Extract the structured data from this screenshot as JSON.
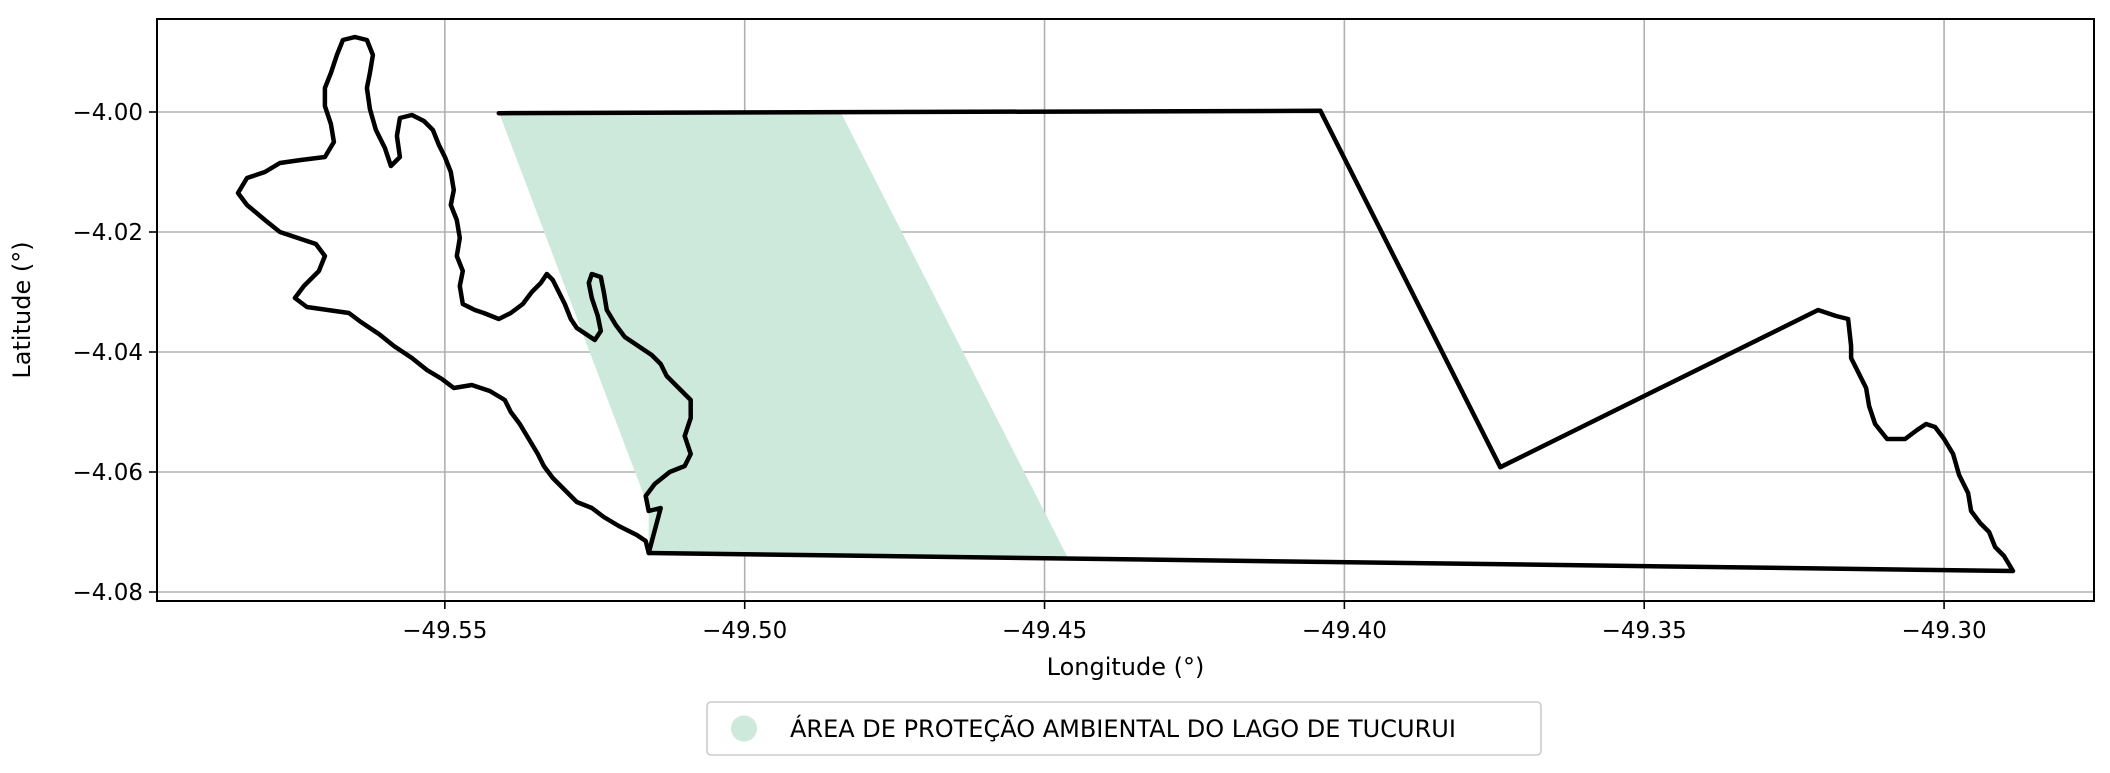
{
  "chart_data": {
    "type": "map",
    "xlabel": "Longitude (°)",
    "ylabel": "Latitude (°)",
    "xlim": [
      -49.598,
      -49.275
    ],
    "ylim": [
      -4.0815,
      -3.9845
    ],
    "xticks": [
      -49.55,
      -49.5,
      -49.45,
      -49.4,
      -49.35,
      -49.3
    ],
    "xtick_labels": [
      "−49.55",
      "−49.50",
      "−49.45",
      "−49.40",
      "−49.35",
      "−49.30"
    ],
    "yticks": [
      -4.0,
      -4.02,
      -4.04,
      -4.06,
      -4.08
    ],
    "ytick_labels": [
      "−4.00",
      "−4.02",
      "−4.04",
      "−4.06",
      "−4.08"
    ],
    "grid": true,
    "legend_placement": "bottom-center",
    "legend": [
      {
        "label": "ÁREA DE PROTEÇÃO AMBIENTAL DO LAGO DE TUCURUI",
        "color": "#cce9dc"
      }
    ],
    "filled_area": {
      "color": "#cce9dc",
      "polygon": [
        [
          -49.541,
          -4.0
        ],
        [
          -49.484,
          -4.0
        ],
        [
          -49.446,
          -4.0745
        ],
        [
          -49.516,
          -4.0735
        ],
        [
          -49.516,
          -4.066
        ],
        [
          -49.541,
          -4.0
        ]
      ]
    },
    "outline_color": "#000000",
    "boundary": [
      [
        -49.541,
        -4.0002
      ],
      [
        -49.404,
        -3.9998
      ],
      [
        -49.374,
        -4.0592
      ],
      [
        -49.321,
        -4.033
      ],
      [
        -49.318,
        -4.034
      ],
      [
        -49.316,
        -4.0345
      ],
      [
        -49.3155,
        -4.039
      ],
      [
        -49.3155,
        -4.041
      ],
      [
        -49.3145,
        -4.043
      ],
      [
        -49.313,
        -4.046
      ],
      [
        -49.3125,
        -4.049
      ],
      [
        -49.3115,
        -4.052
      ],
      [
        -49.3095,
        -4.0545
      ],
      [
        -49.3065,
        -4.0545
      ],
      [
        -49.3045,
        -4.053
      ],
      [
        -49.303,
        -4.052
      ],
      [
        -49.3015,
        -4.0525
      ],
      [
        -49.3,
        -4.0545
      ],
      [
        -49.2985,
        -4.057
      ],
      [
        -49.2975,
        -4.0605
      ],
      [
        -49.296,
        -4.0635
      ],
      [
        -49.2955,
        -4.0665
      ],
      [
        -49.294,
        -4.0685
      ],
      [
        -49.2925,
        -4.07
      ],
      [
        -49.2915,
        -4.0725
      ],
      [
        -49.29,
        -4.074
      ],
      [
        -49.2885,
        -4.0765
      ],
      [
        -49.516,
        -4.0735
      ]
    ],
    "coastline": [
      [
        -49.516,
        -4.0735
      ],
      [
        -49.5165,
        -4.0715
      ],
      [
        -49.518,
        -4.0705
      ],
      [
        -49.521,
        -4.069
      ],
      [
        -49.5235,
        -4.0675
      ],
      [
        -49.5255,
        -4.066
      ],
      [
        -49.528,
        -4.065
      ],
      [
        -49.53,
        -4.063
      ],
      [
        -49.532,
        -4.061
      ],
      [
        -49.5335,
        -4.059
      ],
      [
        -49.5345,
        -4.057
      ],
      [
        -49.536,
        -4.0545
      ],
      [
        -49.5375,
        -4.052
      ],
      [
        -49.539,
        -4.05
      ],
      [
        -49.54,
        -4.048
      ],
      [
        -49.5425,
        -4.0465
      ],
      [
        -49.5455,
        -4.0455
      ],
      [
        -49.5485,
        -4.046
      ],
      [
        -49.5505,
        -4.0445
      ],
      [
        -49.553,
        -4.043
      ],
      [
        -49.5555,
        -4.041
      ],
      [
        -49.5585,
        -4.039
      ],
      [
        -49.561,
        -4.037
      ],
      [
        -49.564,
        -4.035
      ],
      [
        -49.566,
        -4.0335
      ],
      [
        -49.5695,
        -4.033
      ],
      [
        -49.573,
        -4.0325
      ],
      [
        -49.575,
        -4.031
      ],
      [
        -49.5735,
        -4.029
      ],
      [
        -49.571,
        -4.0265
      ],
      [
        -49.57,
        -4.024
      ],
      [
        -49.5715,
        -4.022
      ],
      [
        -49.5745,
        -4.021
      ],
      [
        -49.5775,
        -4.02
      ],
      [
        -49.58,
        -4.018
      ],
      [
        -49.583,
        -4.0155
      ],
      [
        -49.5845,
        -4.0135
      ],
      [
        -49.583,
        -4.011
      ],
      [
        -49.58,
        -4.01
      ],
      [
        -49.5775,
        -4.0085
      ],
      [
        -49.574,
        -4.008
      ],
      [
        -49.57,
        -4.0075
      ],
      [
        -49.5685,
        -4.005
      ],
      [
        -49.569,
        -4.002
      ],
      [
        -49.57,
        -3.999
      ],
      [
        -49.57,
        -3.996
      ],
      [
        -49.569,
        -3.9935
      ],
      [
        -49.568,
        -3.9905
      ],
      [
        -49.567,
        -3.988
      ],
      [
        -49.565,
        -3.9875
      ],
      [
        -49.563,
        -3.988
      ],
      [
        -49.562,
        -3.9905
      ],
      [
        -49.5625,
        -3.9935
      ],
      [
        -49.563,
        -3.996
      ],
      [
        -49.5625,
        -3.9995
      ],
      [
        -49.5615,
        -4.003
      ],
      [
        -49.56,
        -4.006
      ],
      [
        -49.559,
        -4.009
      ],
      [
        -49.5575,
        -4.0075
      ],
      [
        -49.558,
        -4.004
      ],
      [
        -49.5575,
        -4.001
      ],
      [
        -49.5555,
        -4.0005
      ],
      [
        -49.5535,
        -4.0015
      ],
      [
        -49.552,
        -4.003
      ],
      [
        -49.551,
        -4.0055
      ],
      [
        -49.55,
        -4.0075
      ],
      [
        -49.549,
        -4.01
      ],
      [
        -49.5485,
        -4.013
      ],
      [
        -49.549,
        -4.0155
      ],
      [
        -49.548,
        -4.018
      ],
      [
        -49.5475,
        -4.021
      ],
      [
        -49.548,
        -4.024
      ],
      [
        -49.547,
        -4.0265
      ],
      [
        -49.5475,
        -4.029
      ],
      [
        -49.547,
        -4.032
      ],
      [
        -49.545,
        -4.033
      ],
      [
        -49.5435,
        -4.0335
      ],
      [
        -49.541,
        -4.0345
      ],
      [
        -49.539,
        -4.0335
      ],
      [
        -49.537,
        -4.032
      ],
      [
        -49.5355,
        -4.03
      ],
      [
        -49.534,
        -4.0285
      ],
      [
        -49.533,
        -4.027
      ],
      [
        -49.532,
        -4.028
      ],
      [
        -49.531,
        -4.03
      ],
      [
        -49.53,
        -4.032
      ],
      [
        -49.529,
        -4.0345
      ],
      [
        -49.528,
        -4.036
      ],
      [
        -49.5265,
        -4.037
      ],
      [
        -49.525,
        -4.038
      ],
      [
        -49.524,
        -4.0365
      ],
      [
        -49.5245,
        -4.034
      ],
      [
        -49.5255,
        -4.031
      ],
      [
        -49.526,
        -4.0285
      ],
      [
        -49.5255,
        -4.027
      ],
      [
        -49.524,
        -4.0275
      ],
      [
        -49.5235,
        -4.03
      ],
      [
        -49.523,
        -4.033
      ],
      [
        -49.5215,
        -4.0355
      ],
      [
        -49.52,
        -4.0375
      ],
      [
        -49.5185,
        -4.0385
      ],
      [
        -49.517,
        -4.0395
      ],
      [
        -49.5155,
        -4.0405
      ],
      [
        -49.514,
        -4.042
      ],
      [
        -49.513,
        -4.044
      ],
      [
        -49.511,
        -4.046
      ],
      [
        -49.509,
        -4.048
      ],
      [
        -49.509,
        -4.051
      ],
      [
        -49.51,
        -4.054
      ],
      [
        -49.509,
        -4.057
      ],
      [
        -49.51,
        -4.059
      ],
      [
        -49.5125,
        -4.06
      ],
      [
        -49.515,
        -4.062
      ],
      [
        -49.5165,
        -4.064
      ],
      [
        -49.516,
        -4.0665
      ],
      [
        -49.514,
        -4.066
      ],
      [
        -49.516,
        -4.0735
      ]
    ]
  }
}
